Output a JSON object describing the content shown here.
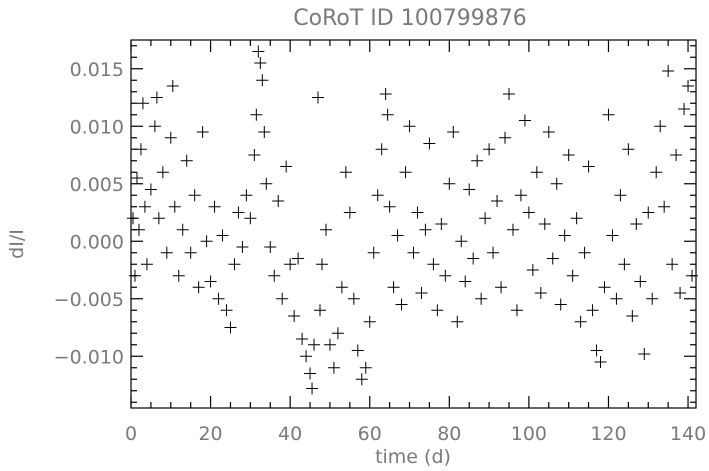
{
  "chart_data": {
    "type": "scatter",
    "title": "CoRoT ID 100799876",
    "xlabel": "time (d)",
    "ylabel": "dI/I",
    "xlim": [
      0,
      142
    ],
    "ylim": [
      -0.0145,
      0.0175
    ],
    "xticks": [
      0,
      20,
      40,
      60,
      80,
      100,
      120,
      140
    ],
    "xtick_labels": [
      "0",
      "20",
      "40",
      "60",
      "80",
      "100",
      "120",
      "140"
    ],
    "yticks": [
      -0.01,
      -0.005,
      0.0,
      0.005,
      0.01,
      0.015
    ],
    "ytick_labels": [
      "−0.010",
      "−0.005",
      "0.000",
      "0.005",
      "0.010",
      "0.015"
    ],
    "marker": "plus",
    "grid": false,
    "colors": {
      "marker": "#000000",
      "text": "#7a7a7a",
      "axes": "#000000"
    },
    "series": [
      {
        "values": [
          {
            "x": 0.5,
            "y": 0.002
          },
          {
            "x": 1.0,
            "y": -0.003
          },
          {
            "x": 1.5,
            "y": 0.0055
          },
          {
            "x": 2.0,
            "y": 0.001
          },
          {
            "x": 2.5,
            "y": 0.008
          },
          {
            "x": 3.0,
            "y": 0.012
          },
          {
            "x": 3.5,
            "y": 0.003
          },
          {
            "x": 4.0,
            "y": -0.002
          },
          {
            "x": 5.0,
            "y": 0.0045
          },
          {
            "x": 6.0,
            "y": 0.01
          },
          {
            "x": 6.5,
            "y": 0.0125
          },
          {
            "x": 7.0,
            "y": 0.002
          },
          {
            "x": 8.0,
            "y": 0.006
          },
          {
            "x": 9.0,
            "y": -0.001
          },
          {
            "x": 10.0,
            "y": 0.009
          },
          {
            "x": 10.5,
            "y": 0.0135
          },
          {
            "x": 11.0,
            "y": 0.003
          },
          {
            "x": 12.0,
            "y": -0.003
          },
          {
            "x": 13.0,
            "y": 0.001
          },
          {
            "x": 14.0,
            "y": 0.007
          },
          {
            "x": 15.0,
            "y": -0.001
          },
          {
            "x": 16.0,
            "y": 0.004
          },
          {
            "x": 17.0,
            "y": -0.004
          },
          {
            "x": 18.0,
            "y": 0.0095
          },
          {
            "x": 19.0,
            "y": 0.0
          },
          {
            "x": 20.0,
            "y": -0.0035
          },
          {
            "x": 21.0,
            "y": 0.003
          },
          {
            "x": 22.0,
            "y": -0.005
          },
          {
            "x": 23.0,
            "y": 0.0005
          },
          {
            "x": 24.0,
            "y": -0.006
          },
          {
            "x": 25.0,
            "y": -0.0075
          },
          {
            "x": 26.0,
            "y": -0.002
          },
          {
            "x": 27.0,
            "y": 0.0025
          },
          {
            "x": 28.0,
            "y": -0.0005
          },
          {
            "x": 29.0,
            "y": 0.004
          },
          {
            "x": 30.0,
            "y": 0.002
          },
          {
            "x": 31.0,
            "y": 0.0075
          },
          {
            "x": 31.5,
            "y": 0.011
          },
          {
            "x": 32.0,
            "y": 0.0165
          },
          {
            "x": 32.5,
            "y": 0.0155
          },
          {
            "x": 33.0,
            "y": 0.014
          },
          {
            "x": 33.5,
            "y": 0.0095
          },
          {
            "x": 34.0,
            "y": 0.005
          },
          {
            "x": 35.0,
            "y": -0.0005
          },
          {
            "x": 36.0,
            "y": -0.003
          },
          {
            "x": 37.0,
            "y": 0.0035
          },
          {
            "x": 38.0,
            "y": -0.005
          },
          {
            "x": 39.0,
            "y": 0.0065
          },
          {
            "x": 40.0,
            "y": -0.002
          },
          {
            "x": 41.0,
            "y": -0.0065
          },
          {
            "x": 42.0,
            "y": -0.0015
          },
          {
            "x": 43.0,
            "y": -0.0085
          },
          {
            "x": 44.0,
            "y": -0.01
          },
          {
            "x": 45.0,
            "y": -0.0115
          },
          {
            "x": 45.5,
            "y": -0.0128
          },
          {
            "x": 46.0,
            "y": -0.009
          },
          {
            "x": 47.0,
            "y": 0.0125
          },
          {
            "x": 47.5,
            "y": -0.006
          },
          {
            "x": 48.0,
            "y": -0.002
          },
          {
            "x": 49.0,
            "y": 0.001
          },
          {
            "x": 50.0,
            "y": -0.009
          },
          {
            "x": 51.0,
            "y": -0.011
          },
          {
            "x": 52.0,
            "y": -0.008
          },
          {
            "x": 53.0,
            "y": -0.004
          },
          {
            "x": 54.0,
            "y": 0.006
          },
          {
            "x": 55.0,
            "y": 0.0025
          },
          {
            "x": 56.0,
            "y": -0.005
          },
          {
            "x": 57.0,
            "y": -0.0095
          },
          {
            "x": 58.0,
            "y": -0.012
          },
          {
            "x": 59.0,
            "y": -0.011
          },
          {
            "x": 60.0,
            "y": -0.007
          },
          {
            "x": 61.0,
            "y": -0.001
          },
          {
            "x": 62.0,
            "y": 0.004
          },
          {
            "x": 63.0,
            "y": 0.008
          },
          {
            "x": 64.0,
            "y": 0.0128
          },
          {
            "x": 64.5,
            "y": 0.011
          },
          {
            "x": 65.0,
            "y": 0.003
          },
          {
            "x": 66.0,
            "y": -0.004
          },
          {
            "x": 67.0,
            "y": 0.0005
          },
          {
            "x": 68.0,
            "y": -0.0055
          },
          {
            "x": 69.0,
            "y": 0.006
          },
          {
            "x": 70.0,
            "y": 0.01
          },
          {
            "x": 71.0,
            "y": -0.001
          },
          {
            "x": 72.0,
            "y": 0.0025
          },
          {
            "x": 73.0,
            "y": -0.0045
          },
          {
            "x": 74.0,
            "y": 0.001
          },
          {
            "x": 75.0,
            "y": 0.0085
          },
          {
            "x": 76.0,
            "y": -0.002
          },
          {
            "x": 77.0,
            "y": -0.006
          },
          {
            "x": 78.0,
            "y": 0.0015
          },
          {
            "x": 79.0,
            "y": -0.003
          },
          {
            "x": 80.0,
            "y": 0.005
          },
          {
            "x": 81.0,
            "y": 0.0095
          },
          {
            "x": 82.0,
            "y": -0.007
          },
          {
            "x": 83.0,
            "y": 0.0
          },
          {
            "x": 84.0,
            "y": -0.0035
          },
          {
            "x": 85.0,
            "y": 0.0045
          },
          {
            "x": 86.0,
            "y": -0.0015
          },
          {
            "x": 87.0,
            "y": 0.007
          },
          {
            "x": 88.0,
            "y": -0.005
          },
          {
            "x": 89.0,
            "y": 0.002
          },
          {
            "x": 90.0,
            "y": 0.008
          },
          {
            "x": 91.0,
            "y": -0.001
          },
          {
            "x": 92.0,
            "y": 0.0035
          },
          {
            "x": 93.0,
            "y": -0.004
          },
          {
            "x": 94.0,
            "y": 0.009
          },
          {
            "x": 95.0,
            "y": 0.0128
          },
          {
            "x": 96.0,
            "y": 0.001
          },
          {
            "x": 97.0,
            "y": -0.006
          },
          {
            "x": 98.0,
            "y": 0.004
          },
          {
            "x": 99.0,
            "y": 0.0105
          },
          {
            "x": 100.0,
            "y": 0.0025
          },
          {
            "x": 101.0,
            "y": -0.0025
          },
          {
            "x": 102.0,
            "y": 0.006
          },
          {
            "x": 103.0,
            "y": -0.0045
          },
          {
            "x": 104.0,
            "y": 0.0015
          },
          {
            "x": 105.0,
            "y": 0.0095
          },
          {
            "x": 106.0,
            "y": -0.0015
          },
          {
            "x": 107.0,
            "y": 0.005
          },
          {
            "x": 108.0,
            "y": -0.0055
          },
          {
            "x": 109.0,
            "y": 0.0005
          },
          {
            "x": 110.0,
            "y": 0.0075
          },
          {
            "x": 111.0,
            "y": -0.003
          },
          {
            "x": 112.0,
            "y": 0.002
          },
          {
            "x": 113.0,
            "y": -0.007
          },
          {
            "x": 114.0,
            "y": -0.001
          },
          {
            "x": 115.0,
            "y": 0.0065
          },
          {
            "x": 116.0,
            "y": -0.006
          },
          {
            "x": 117.0,
            "y": -0.0095
          },
          {
            "x": 118.0,
            "y": -0.0105
          },
          {
            "x": 119.0,
            "y": -0.004
          },
          {
            "x": 120.0,
            "y": 0.011
          },
          {
            "x": 121.0,
            "y": 0.0005
          },
          {
            "x": 122.0,
            "y": -0.005
          },
          {
            "x": 123.0,
            "y": 0.004
          },
          {
            "x": 124.0,
            "y": -0.002
          },
          {
            "x": 125.0,
            "y": 0.008
          },
          {
            "x": 126.0,
            "y": -0.0065
          },
          {
            "x": 127.0,
            "y": 0.0015
          },
          {
            "x": 128.0,
            "y": -0.0035
          },
          {
            "x": 129.0,
            "y": -0.0098
          },
          {
            "x": 130.0,
            "y": 0.0025
          },
          {
            "x": 131.0,
            "y": -0.005
          },
          {
            "x": 132.0,
            "y": 0.006
          },
          {
            "x": 133.0,
            "y": 0.01
          },
          {
            "x": 134.0,
            "y": 0.003
          },
          {
            "x": 135.0,
            "y": 0.0148
          },
          {
            "x": 136.0,
            "y": -0.002
          },
          {
            "x": 137.0,
            "y": 0.0075
          },
          {
            "x": 138.0,
            "y": -0.0045
          },
          {
            "x": 139.0,
            "y": 0.0115
          },
          {
            "x": 140.0,
            "y": 0.0135
          },
          {
            "x": 141.0,
            "y": -0.003
          }
        ]
      }
    ]
  }
}
